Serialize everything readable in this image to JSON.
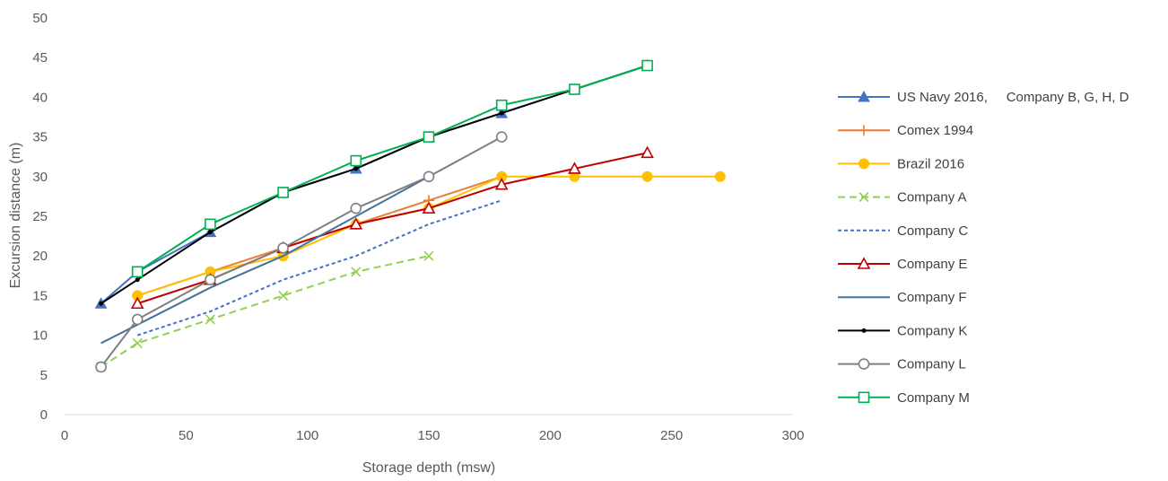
{
  "chart_data": {
    "type": "line",
    "title": "",
    "xlabel": "Storage depth (msw)",
    "ylabel": "Excursion distance (m)",
    "xlim": [
      0,
      300
    ],
    "ylim": [
      0,
      50
    ],
    "xticks": [
      "0",
      "50",
      "100",
      "150",
      "200",
      "250",
      "300"
    ],
    "yticks": [
      "0",
      "5",
      "10",
      "15",
      "20",
      "25",
      "30",
      "35",
      "40",
      "45",
      "50"
    ],
    "grid": false,
    "legend_position": "right",
    "series": [
      {
        "name": "US Navy 2016,     Company B, G, H, D",
        "color": "#4472c4",
        "marker": "triangle-filled",
        "dash": "solid",
        "points": [
          [
            15,
            14
          ],
          [
            30,
            18
          ],
          [
            60,
            23
          ],
          [
            90,
            28
          ],
          [
            120,
            31
          ],
          [
            150,
            35
          ],
          [
            180,
            38
          ],
          [
            210,
            41
          ],
          [
            240,
            44
          ]
        ]
      },
      {
        "name": "Comex 1994",
        "color": "#ed7d31",
        "marker": "plus",
        "dash": "solid",
        "points": [
          [
            30,
            15
          ],
          [
            60,
            18
          ],
          [
            90,
            21
          ],
          [
            120,
            24
          ],
          [
            150,
            27
          ],
          [
            180,
            30
          ]
        ]
      },
      {
        "name": "Brazil 2016",
        "color": "#ffc000",
        "marker": "circle-filled",
        "dash": "solid",
        "points": [
          [
            30,
            15
          ],
          [
            60,
            18
          ],
          [
            90,
            20
          ],
          [
            120,
            24
          ],
          [
            150,
            26
          ],
          [
            180,
            30
          ],
          [
            210,
            30
          ],
          [
            240,
            30
          ],
          [
            270,
            30
          ]
        ]
      },
      {
        "name": "Company A",
        "color": "#92d050",
        "marker": "x",
        "dash": "long-dash",
        "points": [
          [
            15,
            6
          ],
          [
            30,
            9
          ],
          [
            60,
            12
          ],
          [
            90,
            15
          ],
          [
            120,
            18
          ],
          [
            150,
            20
          ]
        ]
      },
      {
        "name": "Company C",
        "color": "#4472c4",
        "marker": "none",
        "dash": "short-dash",
        "points": [
          [
            30,
            10
          ],
          [
            60,
            13
          ],
          [
            90,
            17
          ],
          [
            120,
            20
          ],
          [
            150,
            24
          ],
          [
            180,
            27
          ]
        ]
      },
      {
        "name": "Company E",
        "color": "#c00000",
        "marker": "triangle-open",
        "dash": "solid",
        "points": [
          [
            30,
            14
          ],
          [
            60,
            17
          ],
          [
            90,
            21
          ],
          [
            120,
            24
          ],
          [
            150,
            26
          ],
          [
            180,
            29
          ],
          [
            210,
            31
          ],
          [
            240,
            33
          ]
        ]
      },
      {
        "name": "Company F",
        "color": "#44729a",
        "marker": "none",
        "dash": "solid",
        "points": [
          [
            15,
            9
          ],
          [
            60,
            16
          ],
          [
            90,
            20
          ],
          [
            120,
            25
          ],
          [
            150,
            30
          ]
        ]
      },
      {
        "name": "Company K",
        "color": "#000000",
        "marker": "dot",
        "dash": "solid",
        "points": [
          [
            15,
            14
          ],
          [
            30,
            17
          ],
          [
            60,
            23
          ],
          [
            90,
            28
          ],
          [
            120,
            31
          ],
          [
            150,
            35
          ],
          [
            180,
            38
          ],
          [
            210,
            41
          ],
          [
            240,
            44
          ]
        ]
      },
      {
        "name": "Company L",
        "color": "#7f7f7f",
        "marker": "circle-open",
        "dash": "solid",
        "points": [
          [
            15,
            6
          ],
          [
            30,
            12
          ],
          [
            60,
            17
          ],
          [
            90,
            21
          ],
          [
            120,
            26
          ],
          [
            150,
            30
          ],
          [
            180,
            35
          ]
        ]
      },
      {
        "name": "Company M",
        "color": "#00b050",
        "marker": "square-open",
        "dash": "solid",
        "points": [
          [
            30,
            18
          ],
          [
            60,
            24
          ],
          [
            90,
            28
          ],
          [
            120,
            32
          ],
          [
            150,
            35
          ],
          [
            180,
            39
          ],
          [
            210,
            41
          ],
          [
            240,
            44
          ]
        ]
      }
    ]
  }
}
